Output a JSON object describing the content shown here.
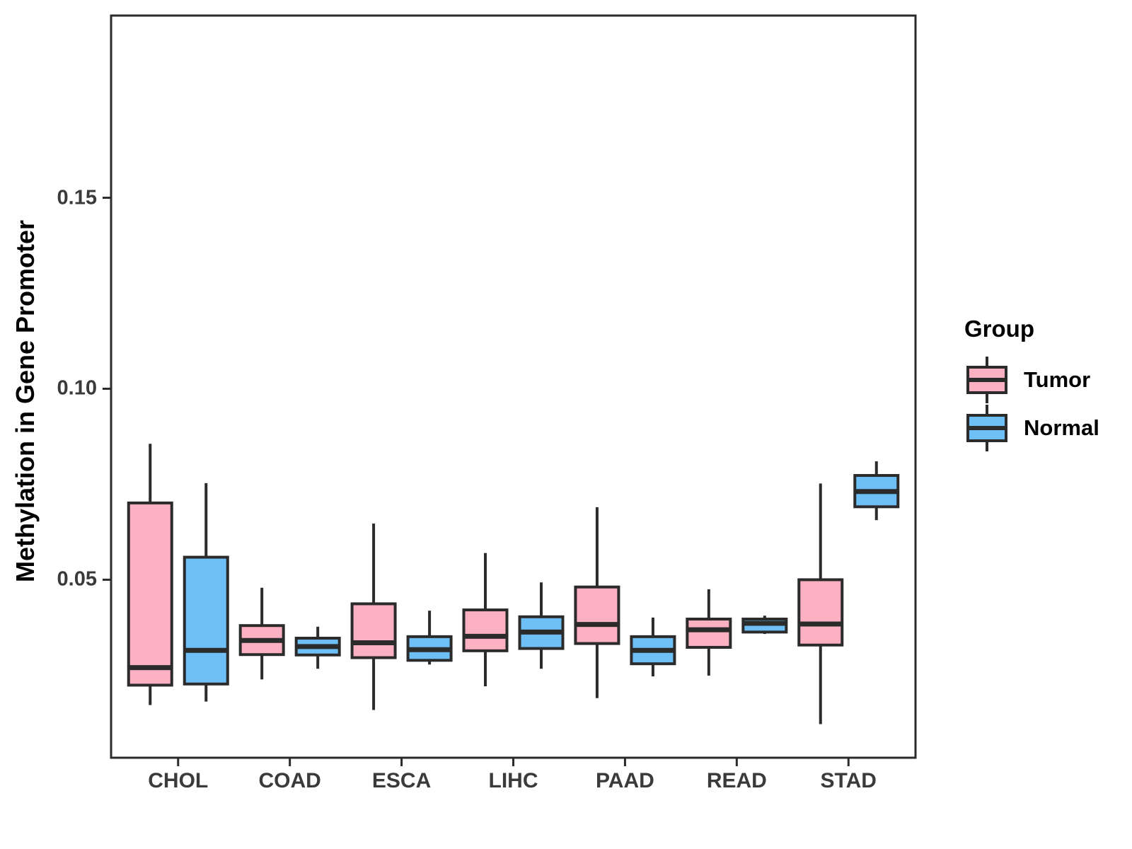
{
  "colors": {
    "tumor": "#FBB1C1",
    "normal": "#6EBFF5",
    "line": "#2B2B2B",
    "axis_text": "#3A3A3A",
    "text": "#000000",
    "background": "#FFFFFF"
  },
  "legend": {
    "title": "Group",
    "position": "right",
    "items": [
      {
        "label": "Tumor",
        "color_key": "tumor"
      },
      {
        "label": "Normal",
        "color_key": "normal"
      }
    ]
  },
  "axes": {
    "y": {
      "title": "Methylation in Gene Promoter",
      "lim": [
        0.0034,
        0.1977
      ],
      "ticks": [
        {
          "value": 0.05,
          "label": "0.05"
        },
        {
          "value": 0.1,
          "label": "0.10"
        },
        {
          "value": 0.15,
          "label": "0.15"
        }
      ]
    },
    "x": {
      "title": "",
      "categories": [
        "CHOL",
        "COAD",
        "ESCA",
        "LIHC",
        "PAAD",
        "READ",
        "STAD"
      ]
    }
  },
  "chart_data": {
    "type": "grouped_boxplot",
    "title": "",
    "xlabel": "",
    "ylabel": "Methylation in Gene Promoter",
    "grid": false,
    "legend_position": "right",
    "categories": [
      "CHOL",
      "COAD",
      "ESCA",
      "LIHC",
      "PAAD",
      "READ",
      "STAD"
    ],
    "groups": [
      "Tumor",
      "Normal"
    ],
    "series": [
      {
        "name": "Tumor",
        "color_key": "tumor",
        "stats": [
          {
            "category": "CHOL",
            "min": 0.0172,
            "q1": 0.0224,
            "median": 0.027,
            "q3": 0.0701,
            "max": 0.0856
          },
          {
            "category": "COAD",
            "min": 0.0239,
            "q1": 0.0304,
            "median": 0.0341,
            "q3": 0.038,
            "max": 0.0479
          },
          {
            "category": "ESCA",
            "min": 0.0159,
            "q1": 0.0296,
            "median": 0.0335,
            "q3": 0.0437,
            "max": 0.0647
          },
          {
            "category": "LIHC",
            "min": 0.0221,
            "q1": 0.0314,
            "median": 0.0352,
            "q3": 0.0421,
            "max": 0.057
          },
          {
            "category": "PAAD",
            "min": 0.019,
            "q1": 0.0333,
            "median": 0.0383,
            "q3": 0.0481,
            "max": 0.069
          },
          {
            "category": "READ",
            "min": 0.0249,
            "q1": 0.0323,
            "median": 0.0369,
            "q3": 0.0397,
            "max": 0.0475
          },
          {
            "category": "STAD",
            "min": 0.0122,
            "q1": 0.0329,
            "median": 0.0384,
            "q3": 0.05,
            "max": 0.0752
          }
        ]
      },
      {
        "name": "Normal",
        "color_key": "normal",
        "stats": [
          {
            "category": "CHOL",
            "min": 0.0181,
            "q1": 0.0227,
            "median": 0.0315,
            "q3": 0.0559,
            "max": 0.0753
          },
          {
            "category": "COAD",
            "min": 0.0267,
            "q1": 0.0303,
            "median": 0.0325,
            "q3": 0.0347,
            "max": 0.0377
          },
          {
            "category": "ESCA",
            "min": 0.0278,
            "q1": 0.0289,
            "median": 0.0317,
            "q3": 0.0351,
            "max": 0.0419
          },
          {
            "category": "LIHC",
            "min": 0.0267,
            "q1": 0.032,
            "median": 0.0363,
            "q3": 0.0403,
            "max": 0.0493
          },
          {
            "category": "PAAD",
            "min": 0.0247,
            "q1": 0.028,
            "median": 0.0315,
            "q3": 0.0351,
            "max": 0.0401
          },
          {
            "category": "READ",
            "min": 0.0358,
            "q1": 0.0363,
            "median": 0.0386,
            "q3": 0.0397,
            "max": 0.0406
          },
          {
            "category": "STAD",
            "min": 0.0656,
            "q1": 0.0691,
            "median": 0.0731,
            "q3": 0.0773,
            "max": 0.081
          }
        ]
      }
    ]
  }
}
